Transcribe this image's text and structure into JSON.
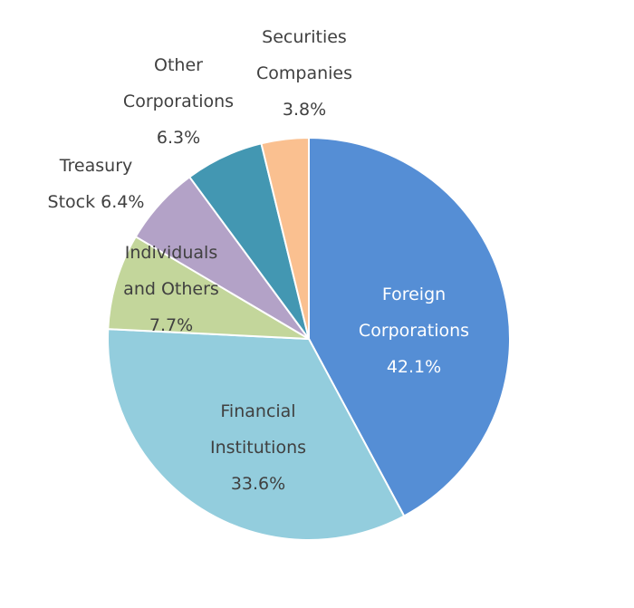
{
  "chart_data": {
    "type": "pie",
    "title": "",
    "start_angle_deg": 0,
    "direction": "clockwise",
    "slices": [
      {
        "label": "Foreign Corporations",
        "label_lines": [
          "Foreign",
          "Corporations",
          "42.1%"
        ],
        "value": 42.1,
        "color": "#558ed5",
        "text_color": "#ffffff"
      },
      {
        "label": "Financial Institutions",
        "label_lines": [
          "Financial",
          "Institutions",
          "33.6%"
        ],
        "value": 33.6,
        "color": "#93cddd",
        "text_color": "#404040"
      },
      {
        "label": "Individuals and Others",
        "label_lines": [
          "Individuals",
          "and Others",
          "7.7%"
        ],
        "value": 7.7,
        "color": "#c3d69b",
        "text_color": "#404040"
      },
      {
        "label": "Treasury Stock",
        "label_lines": [
          "Treasury",
          "Stock 6.4%"
        ],
        "value": 6.4,
        "color": "#b3a2c7",
        "text_color": "#404040"
      },
      {
        "label": "Other Corporations",
        "label_lines": [
          "Other",
          "Corporations",
          "6.3%"
        ],
        "value": 6.3,
        "color": "#4397b2",
        "text_color": "#404040"
      },
      {
        "label": "Securities Companies",
        "label_lines": [
          "Securities",
          "Companies",
          "3.8%"
        ],
        "value": 3.8,
        "color": "#fac090",
        "text_color": "#404040"
      }
    ]
  }
}
